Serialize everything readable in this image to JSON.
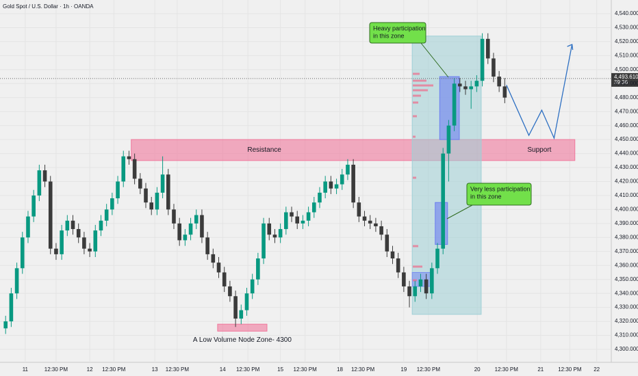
{
  "chart_data": {
    "type": "candlestick",
    "title": "Gold Spot / U.S. Dollar · 1h · OANDA",
    "up_color": "#089981",
    "down_color": "#3b3b3b",
    "grid": true,
    "ylim": [
      4300,
      4540
    ],
    "yticks": [
      {
        "value": 4300,
        "label": "4,300.000"
      },
      {
        "value": 4310,
        "label": "4,310.000"
      },
      {
        "value": 4320,
        "label": "4,320.000"
      },
      {
        "value": 4330,
        "label": "4,330.000"
      },
      {
        "value": 4340,
        "label": "4,340.000"
      },
      {
        "value": 4350,
        "label": "4,350.000"
      },
      {
        "value": 4360,
        "label": "4,360.000"
      },
      {
        "value": 4370,
        "label": "4,370.000"
      },
      {
        "value": 4380,
        "label": "4,380.000"
      },
      {
        "value": 4390,
        "label": "4,390.000"
      },
      {
        "value": 4400,
        "label": "4,400.000"
      },
      {
        "value": 4410,
        "label": "4,410.000"
      },
      {
        "value": 4420,
        "label": "4,420.000"
      },
      {
        "value": 4430,
        "label": "4,430.000"
      },
      {
        "value": 4440,
        "label": "4,440.000"
      },
      {
        "value": 4450,
        "label": "4,450.000"
      },
      {
        "value": 4460,
        "label": "4,460.000"
      },
      {
        "value": 4470,
        "label": "4,470.000"
      },
      {
        "value": 4480,
        "label": "4,480.000"
      },
      {
        "value": 4490,
        "label": "4,490.000"
      },
      {
        "value": 4500,
        "label": "4,500.000"
      },
      {
        "value": 4510,
        "label": "4,510.000"
      },
      {
        "value": 4520,
        "label": "4,520.000"
      },
      {
        "value": 4530,
        "label": "4,530.000"
      },
      {
        "value": 4540,
        "label": "4,540.000"
      }
    ],
    "xlim": [
      -1,
      108
    ],
    "xticks": [
      {
        "value": 3.5,
        "label": "11"
      },
      {
        "value": 9,
        "label": "12:30 PM"
      },
      {
        "value": 15,
        "label": "12"
      },
      {
        "value": 19.3,
        "label": "12:30 PM"
      },
      {
        "value": 26.6,
        "label": "13"
      },
      {
        "value": 30.6,
        "label": "12:30 PM"
      },
      {
        "value": 38.7,
        "label": "14"
      },
      {
        "value": 43.2,
        "label": "12:30 PM"
      },
      {
        "value": 49,
        "label": "15"
      },
      {
        "value": 53.4,
        "label": "12:30 PM"
      },
      {
        "value": 59.6,
        "label": "18"
      },
      {
        "value": 63.7,
        "label": "12:30 PM"
      },
      {
        "value": 71,
        "label": "19"
      },
      {
        "value": 75.4,
        "label": "12:30 PM"
      },
      {
        "value": 84.1,
        "label": "20"
      },
      {
        "value": 89.3,
        "label": "12:30 PM"
      },
      {
        "value": 95.4,
        "label": "21"
      },
      {
        "value": 100.6,
        "label": "12:30 PM"
      },
      {
        "value": 105.4,
        "label": "22"
      }
    ],
    "open": [
      4315,
      4320,
      4340,
      4358,
      4380,
      4395,
      4410,
      4428,
      4420,
      4372,
      4368,
      4385,
      4392,
      4386,
      4380,
      4372,
      4370,
      4385,
      4392,
      4400,
      4408,
      4420,
      4438,
      4436,
      4422,
      4415,
      4405,
      4400,
      4412,
      4425,
      4400,
      4390,
      4378,
      4382,
      4390,
      4396,
      4380,
      4368,
      4362,
      4355,
      4345,
      4338,
      4322,
      4328,
      4340,
      4350,
      4365,
      4390,
      4382,
      4380,
      4386,
      4398,
      4395,
      4390,
      4392,
      4398,
      4405,
      4412,
      4420,
      4415,
      4418,
      4425,
      4432,
      4405,
      4395,
      4392,
      4390,
      4388,
      4382,
      4370,
      4365,
      4355,
      4345,
      4338,
      4345,
      4350,
      4340,
      4358,
      4372,
      4440,
      4460,
      4490,
      4488,
      4486,
      4488,
      4492,
      4522,
      4508,
      4495,
      4488
    ],
    "high": [
      4324,
      4344,
      4362,
      4384,
      4399,
      4414,
      4432,
      4432,
      4424,
      4376,
      4389,
      4396,
      4396,
      4390,
      4384,
      4376,
      4389,
      4396,
      4404,
      4412,
      4424,
      4442,
      4442,
      4440,
      4426,
      4419,
      4409,
      4416,
      4438,
      4429,
      4404,
      4394,
      4386,
      4394,
      4400,
      4400,
      4384,
      4372,
      4366,
      4359,
      4349,
      4342,
      4332,
      4344,
      4354,
      4369,
      4394,
      4394,
      4386,
      4390,
      4402,
      4402,
      4399,
      4396,
      4402,
      4409,
      4416,
      4424,
      4424,
      4422,
      4429,
      4436,
      4436,
      4409,
      4399,
      4396,
      4394,
      4392,
      4386,
      4374,
      4369,
      4359,
      4349,
      4349,
      4354,
      4354,
      4362,
      4376,
      4444,
      4464,
      4494,
      4494,
      4492,
      4492,
      4496,
      4526,
      4526,
      4512,
      4499,
      4494
    ],
    "low": [
      4311,
      4316,
      4336,
      4354,
      4376,
      4391,
      4406,
      4416,
      4368,
      4364,
      4364,
      4381,
      4382,
      4376,
      4368,
      4366,
      4366,
      4381,
      4388,
      4396,
      4404,
      4416,
      4432,
      4418,
      4411,
      4401,
      4396,
      4396,
      4408,
      4396,
      4386,
      4374,
      4374,
      4378,
      4386,
      4376,
      4364,
      4358,
      4351,
      4341,
      4334,
      4316,
      4318,
      4324,
      4336,
      4346,
      4361,
      4378,
      4376,
      4376,
      4382,
      4391,
      4386,
      4386,
      4388,
      4394,
      4401,
      4408,
      4411,
      4411,
      4414,
      4421,
      4401,
      4391,
      4388,
      4386,
      4384,
      4378,
      4366,
      4361,
      4351,
      4341,
      4330,
      4334,
      4341,
      4336,
      4336,
      4354,
      4368,
      4420,
      4456,
      4484,
      4482,
      4472,
      4484,
      4488,
      4504,
      4491,
      4484,
      4476
    ],
    "close": [
      4320,
      4340,
      4358,
      4380,
      4395,
      4410,
      4428,
      4420,
      4372,
      4368,
      4385,
      4392,
      4386,
      4380,
      4372,
      4370,
      4385,
      4392,
      4400,
      4408,
      4420,
      4438,
      4436,
      4422,
      4415,
      4405,
      4400,
      4412,
      4425,
      4400,
      4390,
      4378,
      4382,
      4390,
      4396,
      4380,
      4368,
      4362,
      4355,
      4345,
      4338,
      4322,
      4328,
      4340,
      4350,
      4365,
      4390,
      4382,
      4380,
      4386,
      4398,
      4395,
      4390,
      4392,
      4398,
      4405,
      4412,
      4420,
      4415,
      4418,
      4425,
      4432,
      4405,
      4395,
      4392,
      4390,
      4388,
      4382,
      4370,
      4365,
      4355,
      4345,
      4338,
      4345,
      4350,
      4340,
      4358,
      4372,
      4440,
      4460,
      4490,
      4488,
      4486,
      4488,
      4492,
      4522,
      4508,
      4495,
      4488,
      4480
    ],
    "last_price": {
      "value": 4493.61,
      "label": "4,493.610"
    },
    "countdown": "39:36",
    "zones": [
      {
        "name": "Resistance",
        "side_label": "Support",
        "x": [
          22.4,
          101.5
        ],
        "y": [
          4435,
          4450
        ],
        "color": "#f0789c"
      },
      {
        "name": "A Low Volume Node Zone- 4300",
        "x": [
          37.8,
          46.6
        ],
        "y": [
          4313,
          4318
        ],
        "color": "#f0789c"
      },
      {
        "x": [
          72.5,
          84.8
        ],
        "y": [
          4325,
          4524
        ],
        "color": "#9fd0d6"
      },
      {
        "x": [
          72.5,
          76.2
        ],
        "y": [
          4345,
          4355
        ],
        "color": "#7b8ff0"
      },
      {
        "x": [
          77.4,
          80.9
        ],
        "y": [
          4450,
          4495
        ],
        "color": "#6c7ef0"
      },
      {
        "x": [
          76.6,
          78.8
        ],
        "y": [
          4375,
          4405
        ],
        "color": "#6c7ef0"
      }
    ],
    "callouts": [
      {
        "lines": [
          "Heavy participation",
          "in this zone"
        ],
        "color": "#72e04a"
      },
      {
        "lines": [
          "Very less participation",
          "in this zone"
        ],
        "color": "#72e04a"
      }
    ],
    "projection": {
      "x": [
        89.3,
        93.3,
        95.6,
        97.8,
        101
      ],
      "y": [
        4489,
        4453,
        4471,
        4451,
        4518
      ],
      "color": "#2d6fc2"
    }
  }
}
